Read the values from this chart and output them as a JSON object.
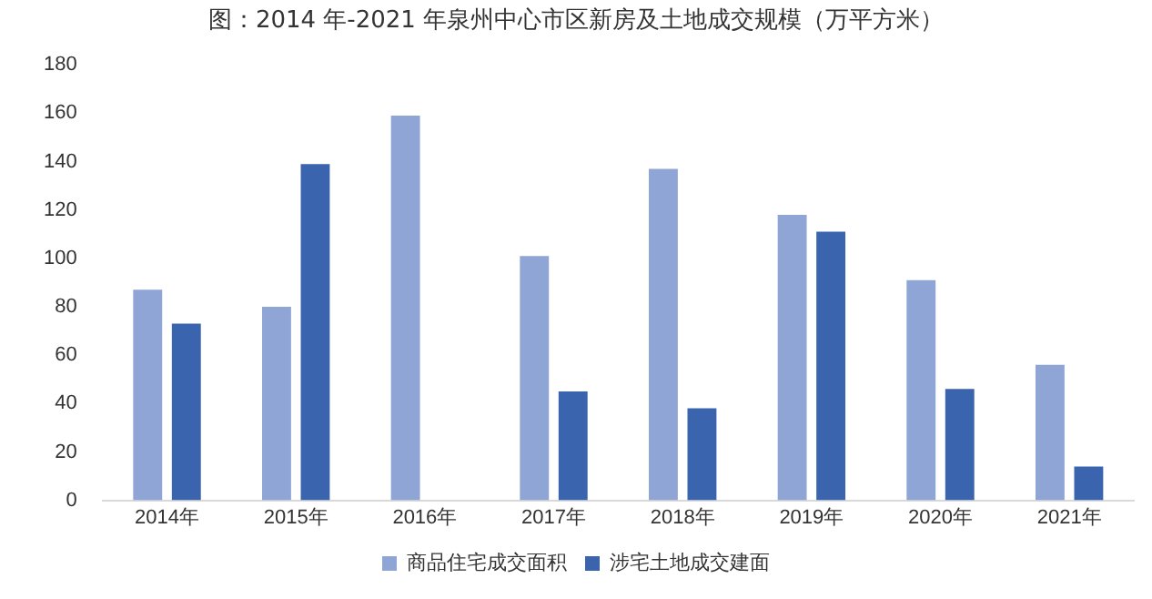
{
  "chart_data": {
    "type": "bar",
    "title": "图：2014 年-2021 年泉州中心市区新房及土地成交规模（万平方米）",
    "categories": [
      "2014年",
      "2015年",
      "2016年",
      "2017年",
      "2018年",
      "2019年",
      "2020年",
      "2021年"
    ],
    "series": [
      {
        "name": "商品住宅成交面积",
        "color": "#8fa5d5",
        "values": [
          87,
          80,
          159,
          101,
          137,
          118,
          91,
          56
        ]
      },
      {
        "name": "涉宅土地成交建面",
        "color": "#3a65ae",
        "values": [
          73,
          139,
          null,
          45,
          38,
          111,
          46,
          14
        ]
      }
    ],
    "ylim": [
      0,
      180
    ],
    "yticks": [
      0,
      20,
      40,
      60,
      80,
      100,
      120,
      140,
      160,
      180
    ],
    "grid": false,
    "legend": "bottom"
  }
}
